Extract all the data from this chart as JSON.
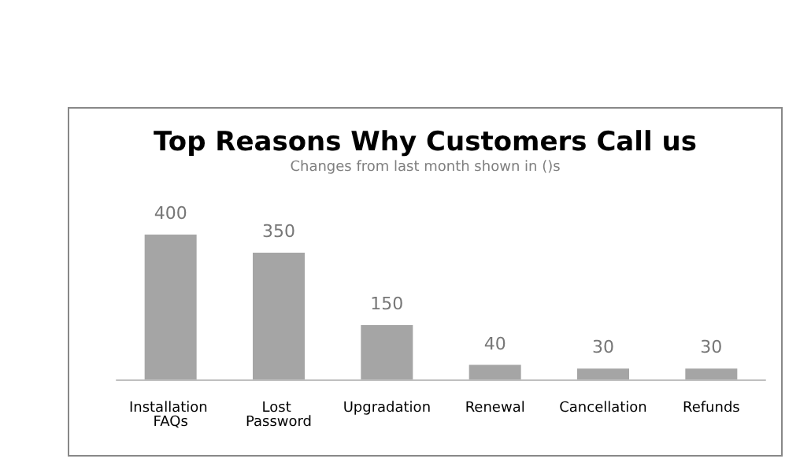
{
  "chart_data": {
    "type": "bar",
    "title": "Top Reasons Why Customers Call us",
    "subtitle": "Changes from last month shown in ()s",
    "categories": [
      "Installation FAQs",
      "Lost Password",
      "Upgradation",
      "Renewal",
      "Cancellation",
      "Refunds"
    ],
    "values": [
      400,
      350,
      150,
      40,
      30,
      30
    ],
    "color": "#a5a5a5",
    "data_labels": true
  }
}
